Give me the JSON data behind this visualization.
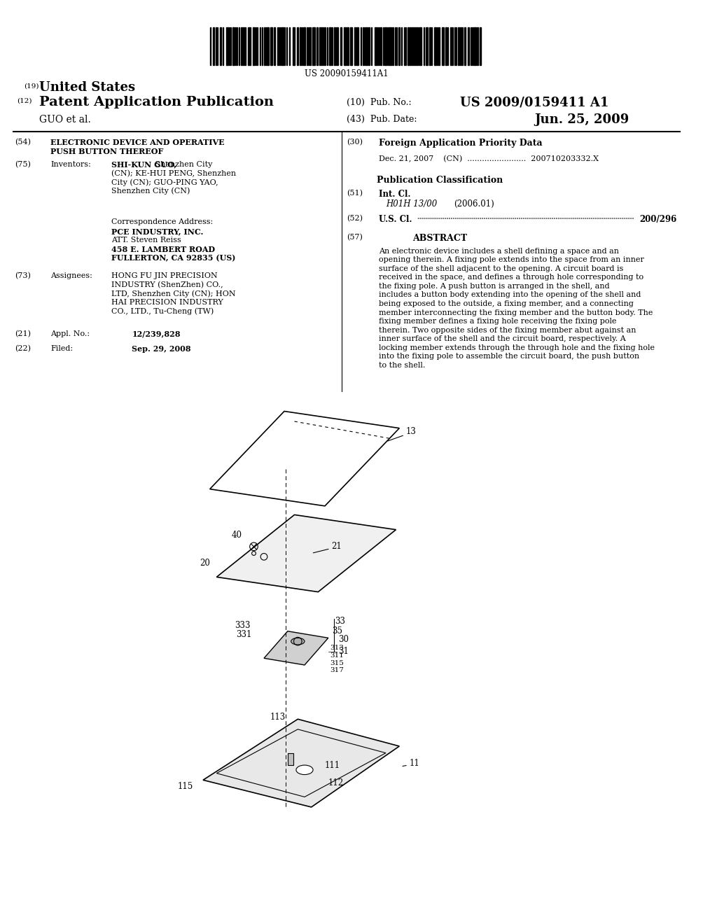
{
  "bg_color": "#ffffff",
  "barcode_text": "US 20090159411A1",
  "title_19": "(19)",
  "title_19_text": "United States",
  "title_12": "(12)",
  "title_12_text": "Patent Application Publication",
  "pub_no_label": "(10)  Pub. No.:",
  "pub_no_value": "US 2009/0159411 A1",
  "author_label": "GUO et al.",
  "pub_date_label": "(43)  Pub. Date:",
  "pub_date_value": "Jun. 25, 2009",
  "field54_label": "(54)",
  "field54_text1": "ELECTRONIC DEVICE AND OPERATIVE",
  "field54_text2": "PUSH BUTTON THEREOF",
  "field75_label": "(75)",
  "field75_key": "Inventors:",
  "field75_val": "SHI-KUN GUO, Shenzhen City\n(CN); KE-HUI PENG, Shenzhen\nCity (CN); GUO-PING YAO,\nShenzhen City (CN)",
  "corr_label": "Correspondence Address:",
  "corr_lines": [
    "PCE INDUSTRY, INC.",
    "ATT. Steven Reiss",
    "458 E. LAMBERT ROAD",
    "FULLERTON, CA 92835 (US)"
  ],
  "field73_label": "(73)",
  "field73_key": "Assignees:",
  "field73_val": "HONG FU JIN PRECISION\nINDUSTRY (ShenZhen) CO.,\nLTD, Shenzhen City (CN); HON\nHAI PRECISION INDUSTRY\nCO., LTD., Tu-Cheng (TW)",
  "field21_label": "(21)",
  "field21_key": "Appl. No.:",
  "field21_val": "12/239,828",
  "field22_label": "(22)",
  "field22_key": "Filed:",
  "field22_val": "Sep. 29, 2008",
  "field30_label": "(30)",
  "field30_key": "Foreign Application Priority Data",
  "field30_val": "Dec. 21, 2007    (CN)  ........................  200710203332.X",
  "pub_class_label": "Publication Classification",
  "field51_label": "(51)",
  "field51_key": "Int. Cl.",
  "field51_sub": "H01H 13/00",
  "field51_year": "(2006.01)",
  "field52_label": "(52)",
  "field52_key": "U.S. Cl.",
  "field52_val": "200/296",
  "field57_label": "(57)",
  "field57_key": "ABSTRACT",
  "abstract_text": "An electronic device includes a shell defining a space and an opening therein. A fixing pole extends into the space from an inner surface of the shell adjacent to the opening. A circuit board is received in the space, and defines a through hole corresponding to the fixing pole. A push button is arranged in the shell, and includes a button body extending into the opening of the shell and being exposed to the outside, a fixing member, and a connecting member interconnecting the fixing member and the button body. The fixing member defines a fixing hole receiving the fixing pole therein. Two opposite sides of the fixing member abut against an inner surface of the shell and the circuit board, respectively. A locking member extends through the through hole and the fixing hole into the fixing pole to assemble the circuit board, the push button to the shell."
}
